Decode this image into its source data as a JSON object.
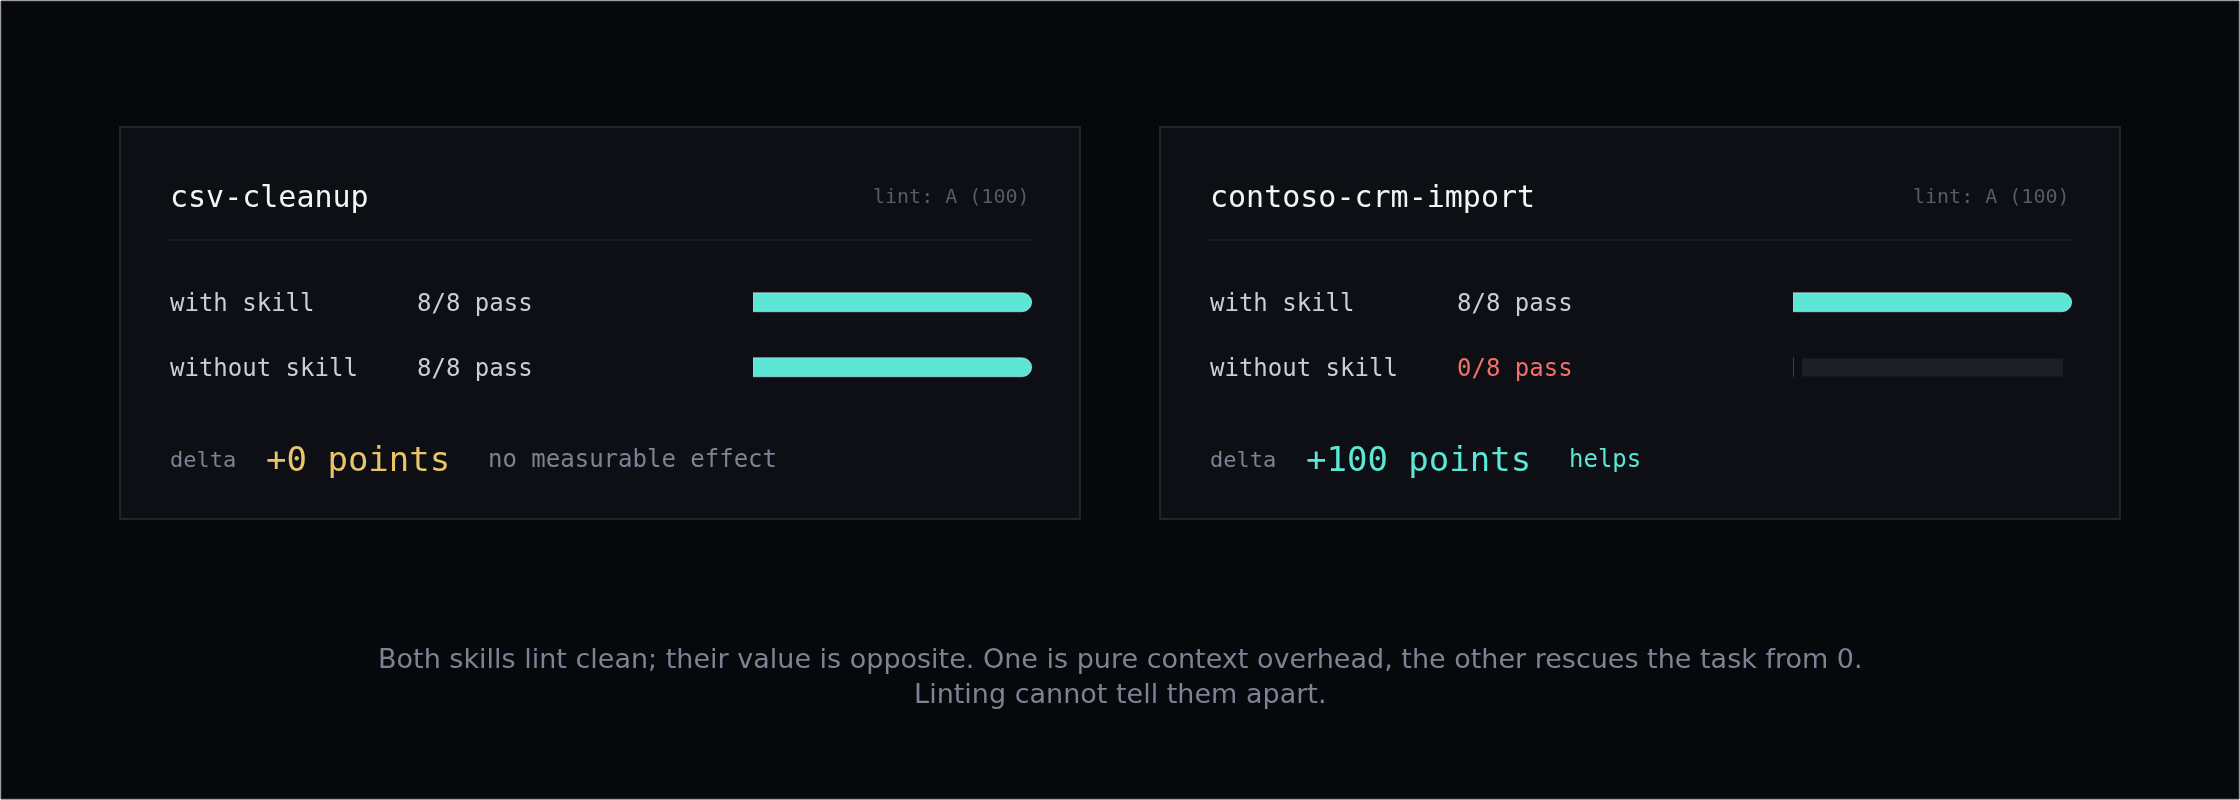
{
  "chart_data": [
    {
      "type": "bar",
      "orientation": "horizontal",
      "title": "csv-cleanup",
      "subtitle": "lint: A (100)",
      "categories": [
        "with skill",
        "without skill"
      ],
      "values": [
        8,
        8
      ],
      "value_labels": [
        "8/8 pass",
        "8/8 pass"
      ],
      "colors": [
        "#5ce6d6",
        "#5ce6d6"
      ],
      "annotations": [
        "delta",
        "+0 points",
        "no measurable effect"
      ]
    },
    {
      "type": "bar",
      "orientation": "horizontal",
      "title": "contoso-crm-import",
      "subtitle": "lint: A (100)",
      "categories": [
        "with skill",
        "without skill"
      ],
      "values": [
        8,
        0
      ],
      "value_labels": [
        "8/8 pass",
        "0/8 pass"
      ],
      "colors": [
        "#5ce6d6",
        "#5ce6d6"
      ],
      "annotations": [
        "delta",
        "+100 points",
        "helps"
      ]
    },
    {
      "type": "other",
      "annotations": [
        "Both skills lint clean; their value is opposite. One is pure context overhead, the other rescues the task from 0.\nLinting cannot tell them apart."
      ]
    }
  ]
}
